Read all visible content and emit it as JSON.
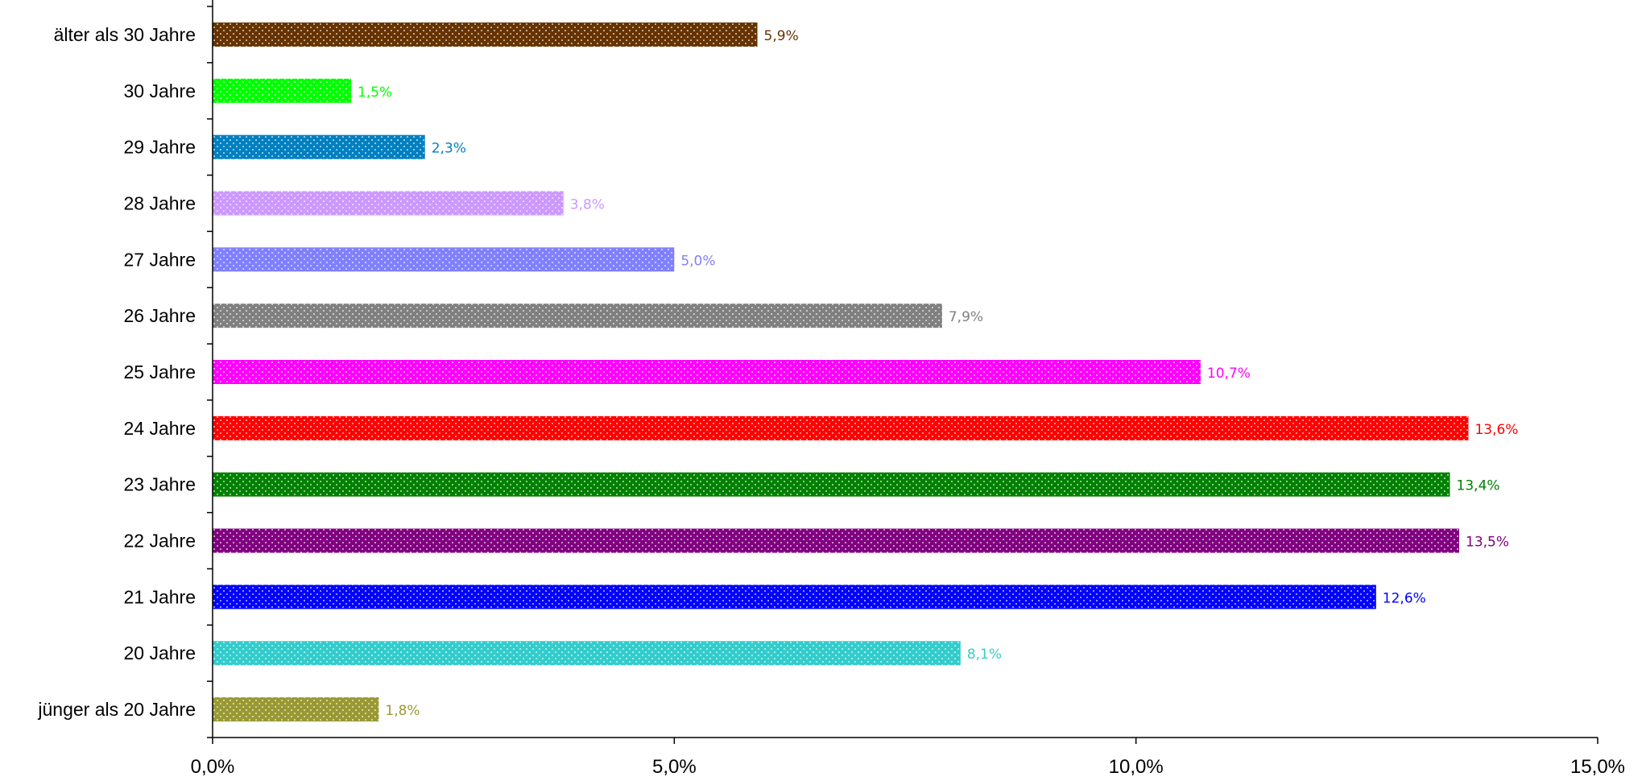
{
  "chart_data": {
    "type": "bar",
    "orientation": "horizontal",
    "categories": [
      "älter als 30 Jahre",
      "30 Jahre",
      "29 Jahre",
      "28 Jahre",
      "27 Jahre",
      "26 Jahre",
      "25 Jahre",
      "24 Jahre",
      "23 Jahre",
      "22 Jahre",
      "21 Jahre",
      "20 Jahre",
      "jünger als 20 Jahre"
    ],
    "values": [
      5.9,
      1.5,
      2.3,
      3.8,
      5.0,
      7.9,
      10.7,
      13.6,
      13.4,
      13.5,
      12.6,
      8.1,
      1.8
    ],
    "value_labels": [
      "5,9%",
      "1,5%",
      "2,3%",
      "3,8%",
      "5,0%",
      "7,9%",
      "10,7%",
      "13,6%",
      "13,4%",
      "13,5%",
      "12,6%",
      "8,1%",
      "1,8%"
    ],
    "colors": [
      "#663300",
      "#00ff00",
      "#0080c0",
      "#cc99ff",
      "#8080ff",
      "#808080",
      "#ff00ff",
      "#ff0000",
      "#008000",
      "#800080",
      "#0000ff",
      "#33cccc",
      "#999933"
    ],
    "xlim": [
      0,
      15
    ],
    "xticks": [
      0,
      5,
      10,
      15
    ],
    "xtick_labels": [
      "0,0%",
      "5,0%",
      "10,0%",
      "15,0%"
    ],
    "xlabel": "",
    "ylabel": "",
    "title": "",
    "grid": false,
    "legend": false,
    "bar_pattern": "dotted"
  }
}
